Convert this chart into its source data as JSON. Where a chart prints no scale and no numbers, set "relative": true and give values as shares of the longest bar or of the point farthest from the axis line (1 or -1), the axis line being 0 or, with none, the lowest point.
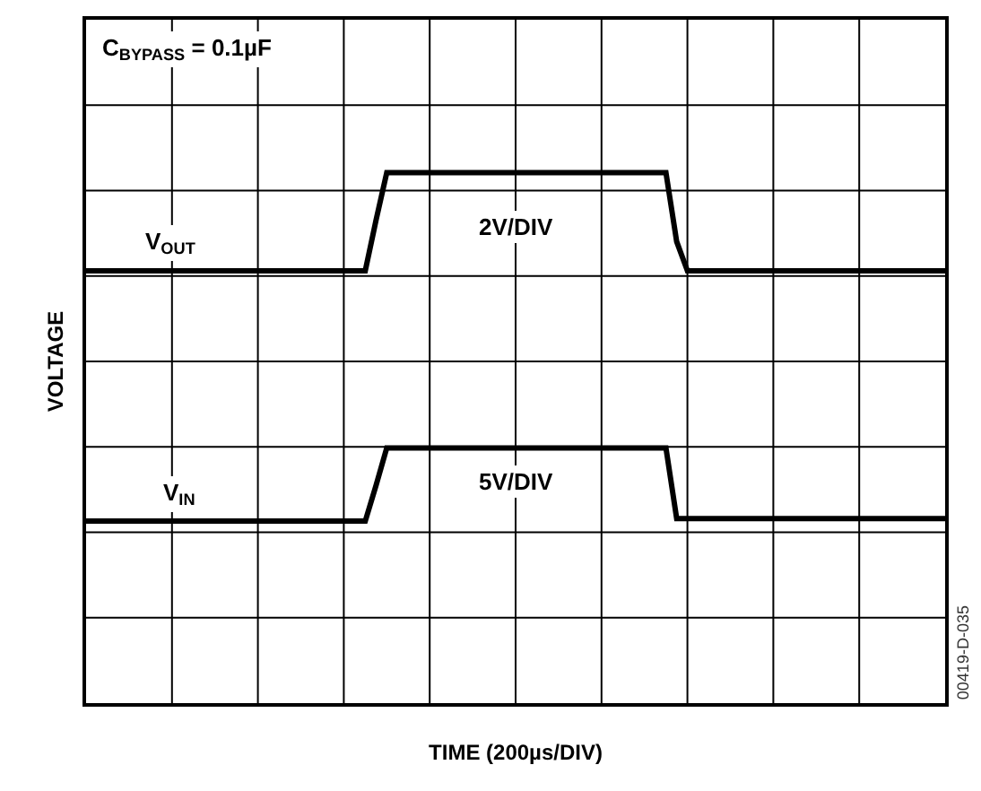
{
  "chart_data": {
    "type": "line",
    "relative": true,
    "xlabel": "TIME (200µs/DIV)",
    "ylabel": "VOLTAGE",
    "categories": [
      null,
      null,
      null,
      null,
      null,
      null,
      null,
      null,
      null,
      null,
      null,
      null,
      null,
      null,
      null,
      null,
      null,
      null,
      null,
      null,
      null,
      null,
      null,
      null,
      null,
      null,
      null,
      null,
      null,
      null,
      null,
      null,
      null,
      null,
      null,
      null,
      null,
      null,
      null,
      null,
      null,
      null,
      null,
      null,
      null,
      null,
      null,
      null,
      null,
      null,
      null,
      null,
      null,
      null,
      null,
      null,
      null,
      null,
      null,
      null,
      null,
      null,
      null,
      null,
      null,
      null,
      null,
      null,
      null,
      null,
      null,
      null,
      null,
      null,
      null,
      null,
      null,
      null,
      null,
      null,
      null
    ],
    "series": [
      {
        "name": "V$_{OUT}$",
        "color": "#000000",
        "values": [
          0.815,
          0.815,
          0.815,
          0.815,
          0.815,
          0.815,
          0.815,
          0.815,
          0.815,
          0.815,
          0.815,
          0.815,
          0.815,
          0.815,
          0.815,
          0.815,
          0.815,
          0.815,
          0.815,
          0.815,
          0.815,
          0.815,
          0.815,
          0.815,
          0.815,
          0.815,
          0.815,
          0.91,
          1,
          1,
          1,
          1,
          1,
          1,
          1,
          1,
          1,
          1,
          1,
          1,
          1,
          1,
          1,
          1,
          1,
          1,
          1,
          1,
          1,
          1,
          1,
          1,
          1,
          1,
          1,
          0.87,
          0.815,
          0.815,
          0.815,
          0.815,
          0.815,
          0.815,
          0.815,
          0.815,
          0.815,
          0.815,
          0.815,
          0.815,
          0.815,
          0.815,
          0.815,
          0.815,
          0.815,
          0.815,
          0.815,
          0.815,
          0.815,
          0.815,
          0.815,
          0.815,
          0.815
        ]
      },
      {
        "name": "V$_{IN}$",
        "color": "#000000",
        "values": [
          0.343,
          0.343,
          0.343,
          0.343,
          0.343,
          0.343,
          0.343,
          0.343,
          0.343,
          0.343,
          0.343,
          0.343,
          0.343,
          0.343,
          0.343,
          0.343,
          0.343,
          0.343,
          0.343,
          0.343,
          0.343,
          0.343,
          0.343,
          0.343,
          0.343,
          0.343,
          0.343,
          0.41,
          0.481,
          0.481,
          0.481,
          0.481,
          0.481,
          0.481,
          0.481,
          0.481,
          0.481,
          0.481,
          0.481,
          0.481,
          0.481,
          0.481,
          0.481,
          0.481,
          0.481,
          0.481,
          0.481,
          0.481,
          0.481,
          0.481,
          0.481,
          0.481,
          0.481,
          0.481,
          0.481,
          0.348,
          0.348,
          0.348,
          0.348,
          0.348,
          0.348,
          0.348,
          0.348,
          0.348,
          0.348,
          0.348,
          0.348,
          0.348,
          0.348,
          0.348,
          0.348,
          0.348,
          0.348,
          0.348,
          0.348,
          0.348,
          0.348,
          0.348,
          0.348,
          0.348,
          0.348
        ]
      }
    ],
    "annotations": [
      "C$_{BYPASS}$ = 0.1µF",
      "2V/DIV",
      "5V/DIV",
      "00419-D-035"
    ],
    "grid": true,
    "marker": "none",
    "line_style": "solid",
    "legend": false,
    "tick_labels": false
  }
}
